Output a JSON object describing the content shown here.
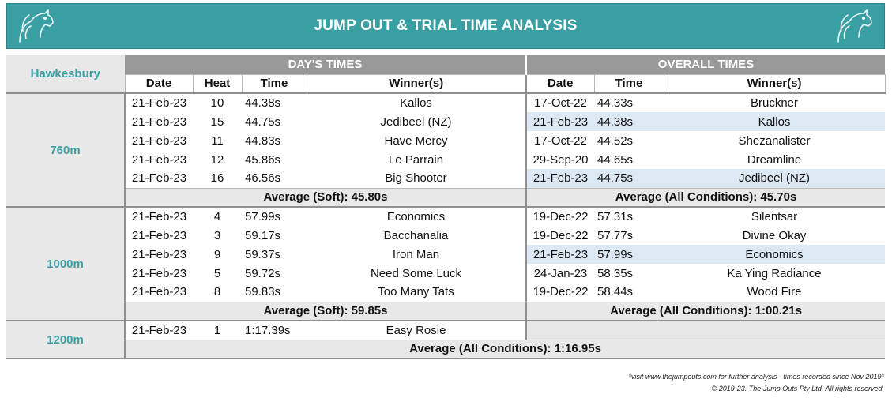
{
  "title": "JUMP OUT & TRIAL TIME ANALYSIS",
  "track": "Hawkesbury",
  "days_times_label": "DAY'S TIMES",
  "overall_times_label": "OVERALL TIMES",
  "columns": {
    "date": "Date",
    "heat": "Heat",
    "time": "Time",
    "winners": "Winner(s)"
  },
  "colors": {
    "brand": "#3a9fa3",
    "header_grey": "#999999",
    "highlight": "#dce8f3"
  },
  "sections": [
    {
      "distance": "760m",
      "day_rows": [
        {
          "date": "21-Feb-23",
          "heat": "10",
          "time": "44.38s",
          "winner": "Kallos"
        },
        {
          "date": "21-Feb-23",
          "heat": "15",
          "time": "44.75s",
          "winner": "Jedibeel (NZ)"
        },
        {
          "date": "21-Feb-23",
          "heat": "11",
          "time": "44.83s",
          "winner": "Have Mercy"
        },
        {
          "date": "21-Feb-23",
          "heat": "12",
          "time": "45.86s",
          "winner": "Le Parrain"
        },
        {
          "date": "21-Feb-23",
          "heat": "16",
          "time": "46.56s",
          "winner": "Big Shooter"
        }
      ],
      "overall_rows": [
        {
          "date": "17-Oct-22",
          "time": "44.33s",
          "winner": "Bruckner",
          "highlight": false
        },
        {
          "date": "21-Feb-23",
          "time": "44.38s",
          "winner": "Kallos",
          "highlight": true
        },
        {
          "date": "17-Oct-22",
          "time": "44.52s",
          "winner": "Shezanalister",
          "highlight": false
        },
        {
          "date": "29-Sep-20",
          "time": "44.65s",
          "winner": "Dreamline",
          "highlight": false
        },
        {
          "date": "21-Feb-23",
          "time": "44.75s",
          "winner": "Jedibeel (NZ)",
          "highlight": true
        }
      ],
      "day_average": "Average (Soft): 45.80s",
      "overall_average": "Average (All Conditions): 45.70s"
    },
    {
      "distance": "1000m",
      "day_rows": [
        {
          "date": "21-Feb-23",
          "heat": "4",
          "time": "57.99s",
          "winner": "Economics"
        },
        {
          "date": "21-Feb-23",
          "heat": "3",
          "time": "59.17s",
          "winner": "Bacchanalia"
        },
        {
          "date": "21-Feb-23",
          "heat": "9",
          "time": "59.37s",
          "winner": "Iron Man"
        },
        {
          "date": "21-Feb-23",
          "heat": "5",
          "time": "59.72s",
          "winner": "Need Some Luck"
        },
        {
          "date": "21-Feb-23",
          "heat": "8",
          "time": "59.83s",
          "winner": "Too Many Tats"
        }
      ],
      "overall_rows": [
        {
          "date": "19-Dec-22",
          "time": "57.31s",
          "winner": "Silentsar",
          "highlight": false
        },
        {
          "date": "19-Dec-22",
          "time": "57.77s",
          "winner": "Divine Okay",
          "highlight": false
        },
        {
          "date": "21-Feb-23",
          "time": "57.99s",
          "winner": "Economics",
          "highlight": true
        },
        {
          "date": "24-Jan-23",
          "time": "58.35s",
          "winner": "Ka Ying Radiance",
          "highlight": false
        },
        {
          "date": "19-Dec-22",
          "time": "58.44s",
          "winner": "Wood Fire",
          "highlight": false
        }
      ],
      "day_average": "Average (Soft): 59.85s",
      "overall_average": "Average (All Conditions): 1:00.21s"
    },
    {
      "distance": "1200m",
      "day_rows": [
        {
          "date": "21-Feb-23",
          "heat": "1",
          "time": "1:17.39s",
          "winner": "Easy Rosie"
        }
      ],
      "overall_rows": [],
      "combined_average": "Average (All Conditions): 1:16.95s"
    }
  ],
  "footer": {
    "note": "*visit www.thejumpouts.com for further analysis - times recorded since Nov 2019*",
    "copyright": "© 2019-23. The Jump Outs Pty Ltd. All rights reserved."
  }
}
